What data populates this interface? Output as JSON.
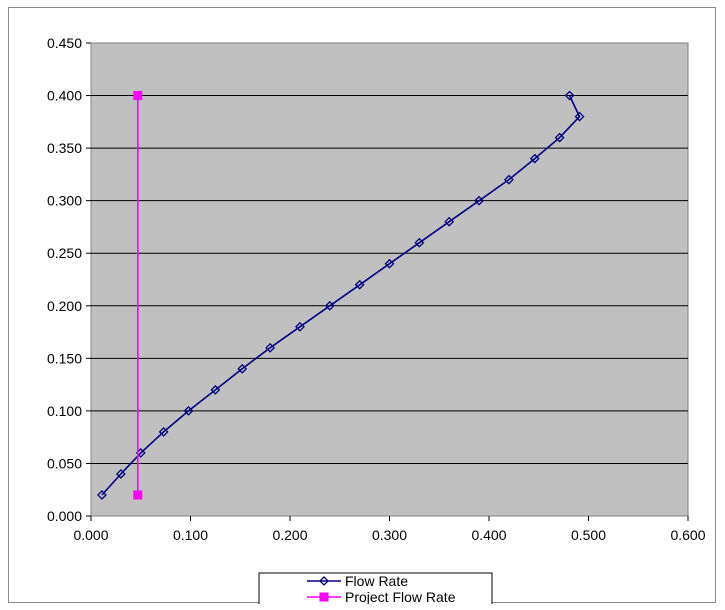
{
  "chart_data": {
    "type": "scatter",
    "xlim": [
      0,
      0.6
    ],
    "ylim": [
      0,
      0.45
    ],
    "x_ticks": [
      "0.000",
      "0.100",
      "0.200",
      "0.300",
      "0.400",
      "0.500",
      "0.600"
    ],
    "y_ticks": [
      "0.000",
      "0.050",
      "0.100",
      "0.150",
      "0.200",
      "0.250",
      "0.300",
      "0.350",
      "0.400",
      "0.450"
    ],
    "grid": "horizontal",
    "plot_background": "#c0c0c0",
    "legend_position": "bottom",
    "series": [
      {
        "name": "Flow Rate",
        "color": "#000080",
        "marker": "diamond",
        "points": [
          [
            0.011,
            0.02
          ],
          [
            0.03,
            0.04
          ],
          [
            0.05,
            0.06
          ],
          [
            0.073,
            0.08
          ],
          [
            0.098,
            0.1
          ],
          [
            0.125,
            0.12
          ],
          [
            0.152,
            0.14
          ],
          [
            0.18,
            0.16
          ],
          [
            0.21,
            0.18
          ],
          [
            0.24,
            0.2
          ],
          [
            0.27,
            0.22
          ],
          [
            0.3,
            0.24
          ],
          [
            0.33,
            0.26
          ],
          [
            0.36,
            0.28
          ],
          [
            0.39,
            0.3
          ],
          [
            0.42,
            0.32
          ],
          [
            0.446,
            0.34
          ],
          [
            0.471,
            0.36
          ],
          [
            0.491,
            0.38
          ],
          [
            0.481,
            0.4
          ]
        ]
      },
      {
        "name": "Project Flow Rate",
        "color": "#ff00ff",
        "marker": "square",
        "points": [
          [
            0.047,
            0.4
          ],
          [
            0.047,
            0.02
          ]
        ]
      }
    ]
  }
}
